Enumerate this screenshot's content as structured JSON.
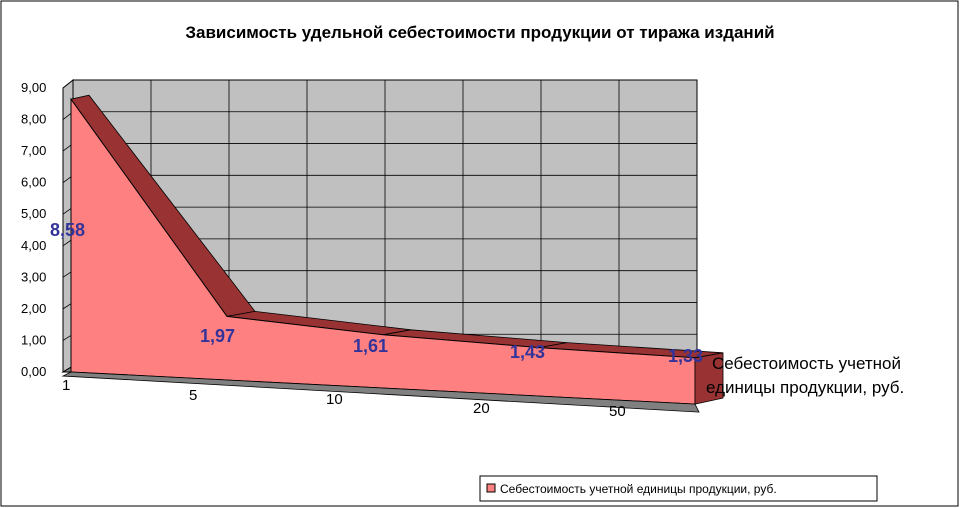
{
  "chart_data": {
    "type": "area",
    "title": "Зависимость удельной себестоимости продукции от тиража изданий",
    "categories": [
      "1",
      "5",
      "10",
      "20",
      "50"
    ],
    "series": [
      {
        "name": "Себестоимость учетной единицы продукции, руб.",
        "values": [
          8.58,
          1.97,
          1.61,
          1.43,
          1.33
        ],
        "labels": [
          "8,58",
          "1,97",
          "1,61",
          "1,43",
          "1,33"
        ]
      }
    ],
    "series_axis_label": [
      "Себестоимость учетной",
      "единицы продукции, руб."
    ],
    "y_ticks": [
      "0,00",
      "1,00",
      "2,00",
      "3,00",
      "4,00",
      "5,00",
      "6,00",
      "7,00",
      "8,00",
      "9,00"
    ],
    "ylim": [
      0,
      9
    ],
    "grid": true,
    "legend_position": "bottom-right",
    "colors": {
      "front": "#ff8080",
      "top": "#993333",
      "wall": "#c0c0c0",
      "floor": "#808080"
    }
  }
}
